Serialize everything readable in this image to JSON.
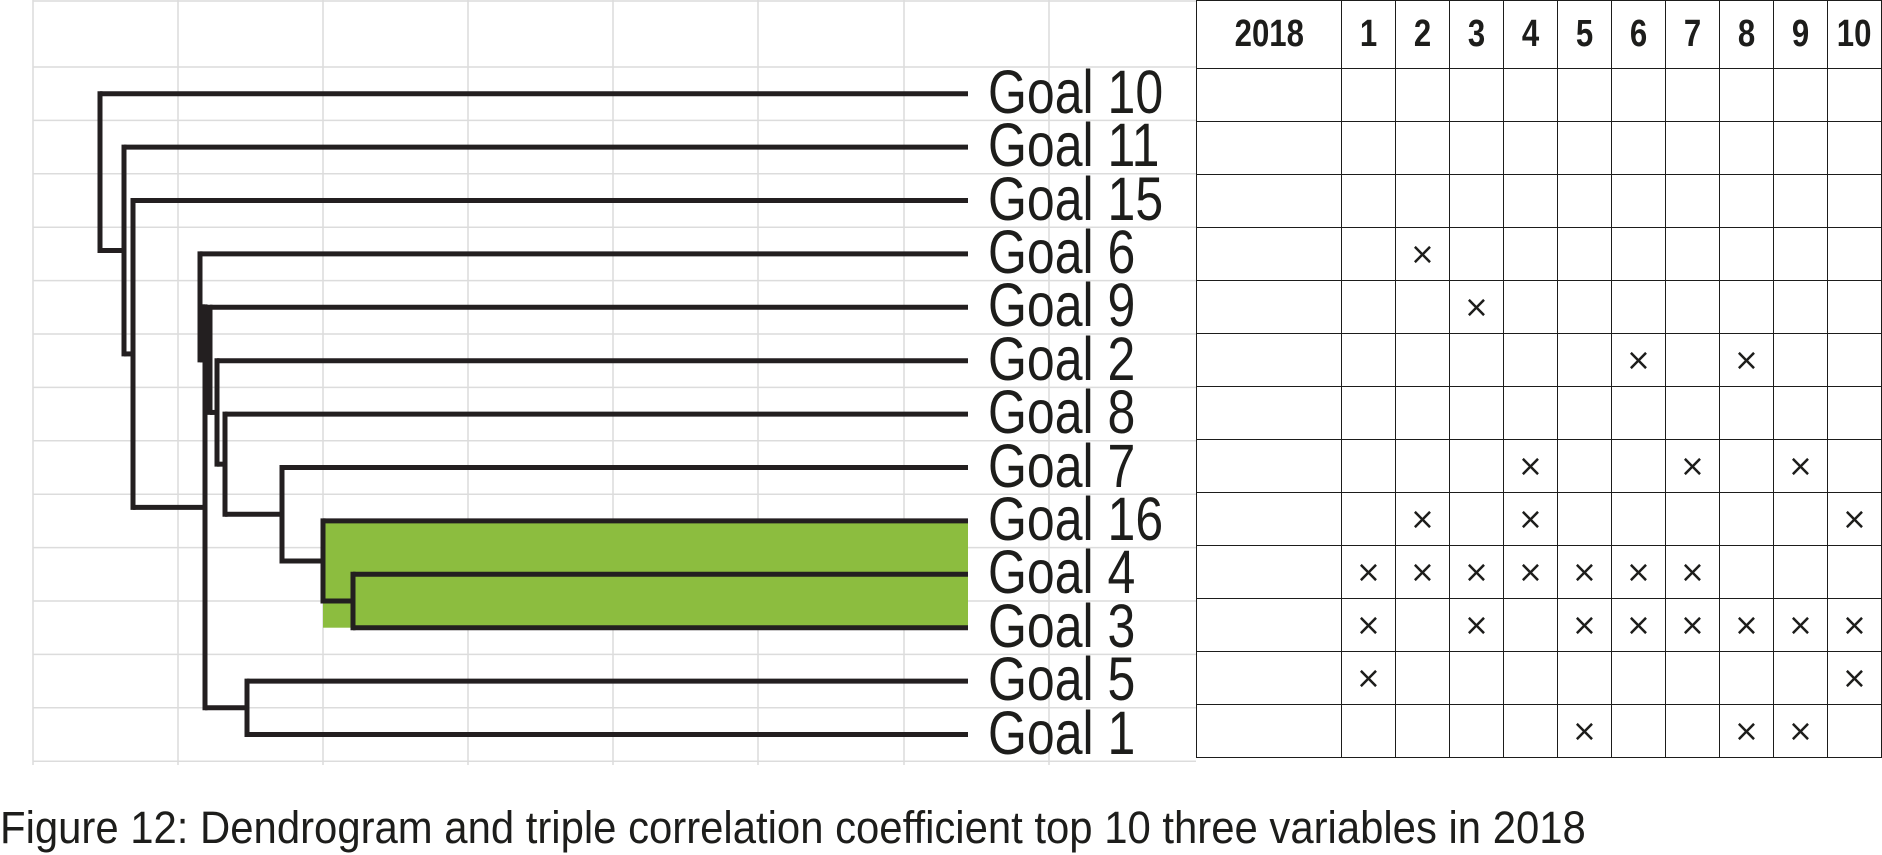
{
  "leaves": [
    {
      "label": "Goal 10"
    },
    {
      "label": "Goal 11"
    },
    {
      "label": "Goal 15"
    },
    {
      "label": "Goal 6"
    },
    {
      "label": "Goal 9"
    },
    {
      "label": "Goal 2"
    },
    {
      "label": "Goal 8"
    },
    {
      "label": "Goal 7"
    },
    {
      "label": "Goal 16"
    },
    {
      "label": "Goal 4"
    },
    {
      "label": "Goal 3"
    },
    {
      "label": "Goal 5"
    },
    {
      "label": "Goal 1"
    }
  ],
  "highlight": {
    "color": "#8cbd3f",
    "leaves": [
      "Goal 4",
      "Goal 3"
    ]
  },
  "colors": {
    "line": "#231f20",
    "grid": "#dcdcdc",
    "text": "#1d1d1b"
  },
  "matrix": {
    "year_header": "2018",
    "columns": [
      "1",
      "2",
      "3",
      "4",
      "5",
      "6",
      "7",
      "8",
      "9",
      "10"
    ],
    "mark": "×",
    "rows": [
      {
        "goal": "Goal 10",
        "marks": []
      },
      {
        "goal": "Goal 11",
        "marks": []
      },
      {
        "goal": "Goal 15",
        "marks": []
      },
      {
        "goal": "Goal 6",
        "marks": [
          "2"
        ]
      },
      {
        "goal": "Goal 9",
        "marks": [
          "3"
        ]
      },
      {
        "goal": "Goal 2",
        "marks": [
          "6",
          "8"
        ]
      },
      {
        "goal": "Goal 8",
        "marks": []
      },
      {
        "goal": "Goal 7",
        "marks": [
          "4",
          "7",
          "9"
        ]
      },
      {
        "goal": "Goal 16",
        "marks": [
          "2",
          "4",
          "10"
        ]
      },
      {
        "goal": "Goal 4",
        "marks": [
          "1",
          "2",
          "3",
          "4",
          "5",
          "6",
          "7"
        ]
      },
      {
        "goal": "Goal 3",
        "marks": [
          "1",
          "3",
          "5",
          "6",
          "7",
          "8",
          "9",
          "10"
        ]
      },
      {
        "goal": "Goal 5",
        "marks": [
          "1",
          "10"
        ]
      },
      {
        "goal": "Goal 1",
        "marks": [
          "5",
          "8",
          "9"
        ]
      }
    ]
  },
  "caption": "Figure 12: Dendrogram and triple correlation coefficient top 10 three variables in 2018"
}
